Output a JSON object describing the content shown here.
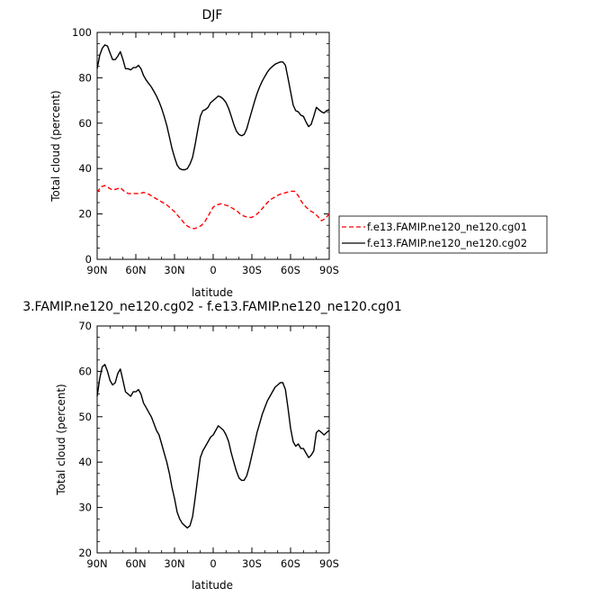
{
  "chart_data": [
    {
      "type": "line",
      "title": "DJF",
      "xlabel": "latitude",
      "ylabel": "Total cloud (percent)",
      "ylim": [
        0,
        100
      ],
      "yticks": [
        0,
        20,
        40,
        60,
        80,
        100
      ],
      "xlim": [
        90,
        -90
      ],
      "xticks": [
        90,
        60,
        30,
        0,
        -30,
        -60,
        -90
      ],
      "xticklabels": [
        "90N",
        "60N",
        "30N",
        "0",
        "30S",
        "60S",
        "90S"
      ],
      "legend_placement": "right",
      "series": [
        {
          "name": "f.e13.FAMIP.ne120_ne120.cg01",
          "color": "#ff0000",
          "dash": "dashed",
          "x": [
            90,
            87,
            84,
            81,
            78,
            75,
            72,
            69,
            66,
            63,
            60,
            57,
            54,
            51,
            48,
            45,
            42,
            39,
            36,
            33,
            30,
            27,
            24,
            21,
            18,
            15,
            12,
            9,
            6,
            3,
            0,
            -3,
            -6,
            -9,
            -12,
            -15,
            -18,
            -21,
            -24,
            -27,
            -30,
            -33,
            -36,
            -39,
            -42,
            -45,
            -48,
            -51,
            -54,
            -57,
            -60,
            -63,
            -66,
            -69,
            -72,
            -75,
            -78,
            -81,
            -84,
            -87,
            -90
          ],
          "values": [
            29.5,
            32,
            32.5,
            31.5,
            30.5,
            31,
            31.5,
            30,
            29,
            29,
            29,
            29,
            29.5,
            29,
            28,
            27,
            26,
            25,
            24,
            22.5,
            21,
            19,
            17,
            15,
            14,
            13.5,
            14,
            15,
            17,
            20,
            23,
            24,
            24.5,
            24,
            23.5,
            22.5,
            21.5,
            20,
            19,
            18.5,
            18.5,
            19.5,
            21,
            23,
            25,
            26.5,
            27.5,
            28.5,
            29,
            29.5,
            30,
            30,
            28,
            25,
            23,
            21.5,
            20.5,
            19,
            17,
            18,
            20
          ]
        },
        {
          "name": "f.e13.FAMIP.ne120_ne120.cg02",
          "color": "#000000",
          "dash": "solid",
          "x": [
            90,
            88,
            86,
            84,
            82,
            80,
            78,
            76,
            74,
            72,
            70,
            68,
            66,
            64,
            62,
            60,
            58,
            56,
            54,
            52,
            50,
            48,
            46,
            44,
            42,
            40,
            38,
            36,
            34,
            32,
            30,
            28,
            26,
            24,
            22,
            20,
            18,
            16,
            14,
            12,
            10,
            8,
            6,
            4,
            2,
            0,
            -2,
            -4,
            -6,
            -8,
            -10,
            -12,
            -14,
            -16,
            -18,
            -20,
            -22,
            -24,
            -26,
            -28,
            -30,
            -32,
            -34,
            -36,
            -38,
            -40,
            -42,
            -44,
            -46,
            -48,
            -50,
            -52,
            -54,
            -56,
            -58,
            -60,
            -62,
            -64,
            -66,
            -68,
            -70,
            -72,
            -74,
            -76,
            -78,
            -80,
            -82,
            -84,
            -86,
            -88,
            -90
          ],
          "values": [
            84,
            90,
            93,
            94.5,
            94,
            91,
            88,
            88,
            89.5,
            91.5,
            88,
            84,
            84,
            83.5,
            84.5,
            84.5,
            85.5,
            84,
            81,
            79,
            77.5,
            76,
            74,
            72,
            69.5,
            66.5,
            63,
            59,
            54,
            49,
            45,
            41.5,
            40,
            39.5,
            39.5,
            40,
            42,
            45,
            50.5,
            57,
            63,
            65.5,
            66,
            67,
            69,
            70,
            71,
            72,
            71.5,
            70.5,
            69,
            66.5,
            63,
            59.5,
            56.5,
            55,
            54.5,
            55,
            57.5,
            61.5,
            65.5,
            69.5,
            73,
            76,
            78.5,
            80.5,
            82.5,
            84,
            85,
            86,
            86.5,
            87,
            87,
            85.5,
            80,
            74,
            68,
            65.5,
            65,
            63.5,
            63,
            60.5,
            58.5,
            59.5,
            63,
            67,
            66,
            65,
            64.5,
            65.5,
            66
          ]
        }
      ]
    },
    {
      "type": "line",
      "title": "3.FAMIP.ne120_ne120.cg02 - f.e13.FAMIP.ne120_ne120.cg01",
      "xlabel": "latitude",
      "ylabel": "Total cloud (percent)",
      "ylim": [
        20,
        70
      ],
      "yticks": [
        20,
        30,
        40,
        50,
        60,
        70
      ],
      "xlim": [
        90,
        -90
      ],
      "xticks": [
        90,
        60,
        30,
        0,
        -30,
        -60,
        -90
      ],
      "xticklabels": [
        "90N",
        "60N",
        "30N",
        "0",
        "30S",
        "60S",
        "90S"
      ],
      "series": [
        {
          "color": "#000000",
          "dash": "solid",
          "x": [
            90,
            88,
            86,
            84,
            82,
            80,
            78,
            76,
            74,
            72,
            70,
            68,
            66,
            64,
            62,
            60,
            58,
            56,
            54,
            52,
            50,
            48,
            46,
            44,
            42,
            40,
            38,
            36,
            34,
            32,
            30,
            28,
            26,
            24,
            22,
            20,
            18,
            16,
            14,
            12,
            10,
            8,
            6,
            4,
            2,
            0,
            -2,
            -4,
            -6,
            -8,
            -10,
            -12,
            -14,
            -16,
            -18,
            -20,
            -22,
            -24,
            -26,
            -28,
            -30,
            -32,
            -34,
            -36,
            -38,
            -40,
            -42,
            -44,
            -46,
            -48,
            -50,
            -52,
            -54,
            -56,
            -58,
            -60,
            -62,
            -64,
            -66,
            -68,
            -70,
            -72,
            -74,
            -76,
            -78,
            -80,
            -82,
            -84,
            -86,
            -88,
            -90
          ],
          "values": [
            54.5,
            58.5,
            61,
            61.5,
            60,
            58,
            57,
            57.5,
            59.5,
            60.5,
            58,
            55.5,
            55,
            54.5,
            55.5,
            55.5,
            56,
            55,
            53,
            52,
            51,
            50,
            48.5,
            47,
            46,
            44,
            42,
            40,
            37.5,
            34.5,
            32,
            29,
            27.5,
            26.5,
            26,
            25.5,
            26,
            28,
            32,
            36.5,
            41,
            42.5,
            43.5,
            44.5,
            45.5,
            46,
            47,
            48,
            47.5,
            47,
            46,
            44.5,
            42,
            40,
            38,
            36.5,
            36,
            36,
            37,
            39,
            41.5,
            44,
            46.5,
            48.5,
            50.5,
            52,
            53.5,
            54.5,
            55.5,
            56.5,
            57,
            57.5,
            57.5,
            56,
            52,
            47.5,
            44.5,
            43.5,
            44,
            43,
            43,
            42,
            41,
            41.5,
            42.5,
            46.5,
            47,
            46.5,
            46,
            46.5,
            47
          ]
        }
      ]
    }
  ]
}
